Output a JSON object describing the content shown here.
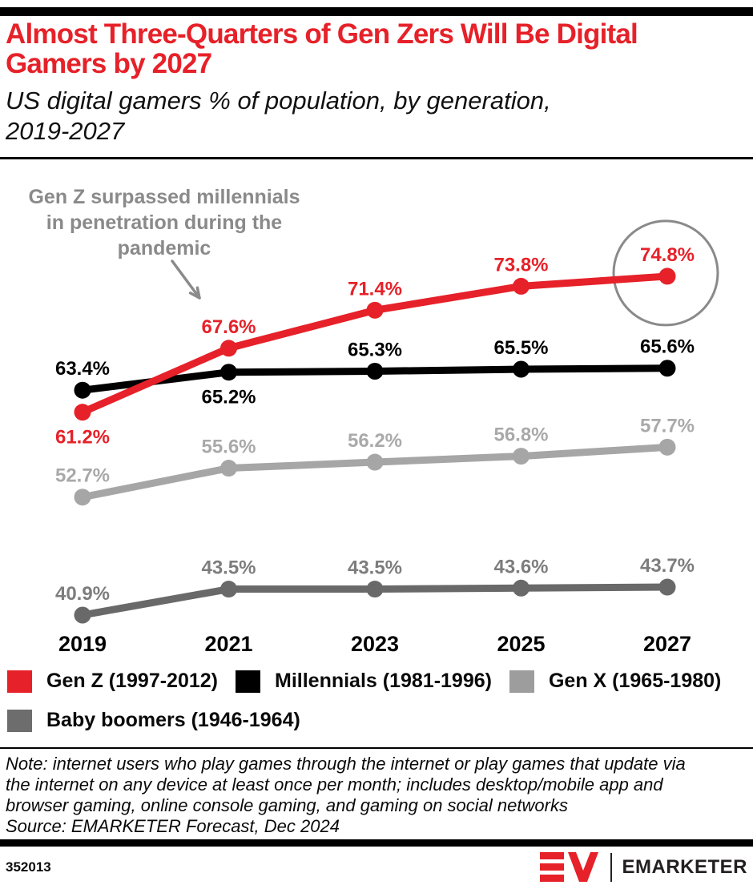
{
  "header": {
    "title": "Almost Three-Quarters of Gen Zers Will Be Digital Gamers by 2027",
    "subtitle": "US digital gamers % of population, by generation, 2019-2027"
  },
  "annotation": {
    "lines": [
      "Gen Z surpassed millennials",
      "in penetration during the",
      "pandemic"
    ],
    "color": "#8a8a8a"
  },
  "chart_data": {
    "type": "line",
    "title": "US digital gamers % of population, by generation, 2019-2027",
    "x": [
      "2019",
      "2021",
      "2023",
      "2025",
      "2027"
    ],
    "xlabel": "",
    "ylabel": "% of population",
    "ylim": [
      38,
      80
    ],
    "grid": false,
    "legend_position": "bottom",
    "series": [
      {
        "name": "Gen Z (1997-2012)",
        "color": "#e62129",
        "label_color": "#e62129",
        "values": [
          61.2,
          67.6,
          71.4,
          73.8,
          74.8
        ],
        "labels": [
          "61.2%",
          "67.6%",
          "71.4%",
          "73.8%",
          "74.8%"
        ],
        "label_side": [
          "below",
          "above",
          "above",
          "above",
          "above"
        ]
      },
      {
        "name": "Millennials (1981-1996)",
        "color": "#000000",
        "label_color": "#000000",
        "values": [
          63.4,
          65.2,
          65.3,
          65.5,
          65.6
        ],
        "labels": [
          "63.4%",
          "65.2%",
          "65.3%",
          "65.5%",
          "65.6%"
        ],
        "label_side": [
          "above",
          "below",
          "above",
          "above",
          "above"
        ]
      },
      {
        "name": "Gen X (1965-1980)",
        "color": "#a6a6a6",
        "label_color": "#a9a9a9",
        "values": [
          52.7,
          55.6,
          56.2,
          56.8,
          57.7
        ],
        "labels": [
          "52.7%",
          "55.6%",
          "56.2%",
          "56.8%",
          "57.7%"
        ],
        "label_side": [
          "above",
          "above",
          "above",
          "above",
          "above"
        ]
      },
      {
        "name": "Baby boomers (1946-1964)",
        "color": "#696969",
        "label_color": "#7d7d7d",
        "values": [
          40.9,
          43.5,
          43.5,
          43.6,
          43.7
        ],
        "labels": [
          "40.9%",
          "43.5%",
          "43.5%",
          "43.6%",
          "43.7%"
        ],
        "label_side": [
          "above",
          "above",
          "above",
          "above",
          "above"
        ]
      }
    ],
    "highlight": {
      "series_index": 0,
      "point_index": 4,
      "circle_color": "#8a8a8a"
    }
  },
  "legend": {
    "rows": [
      [
        {
          "label": "Gen Z (1997-2012)",
          "color": "#e62129"
        },
        {
          "label": "Millennials (1981-1996)",
          "color": "#000000"
        },
        {
          "label": "Gen X (1965-1980)",
          "color": "#9d9d9d"
        }
      ],
      [
        {
          "label": "Baby boomers (1946-1964)",
          "color": "#6d6d6d"
        }
      ]
    ]
  },
  "note": {
    "text": "Note: internet users who play games through the internet or play games that update via the internet on any device at least once per month; includes desktop/mobile app and browser gaming, online console gaming, and gaming on social networks",
    "source": "Source: EMARKETER Forecast, Dec 2024"
  },
  "footer": {
    "chart_id": "352013",
    "brand": "EMARKETER"
  }
}
